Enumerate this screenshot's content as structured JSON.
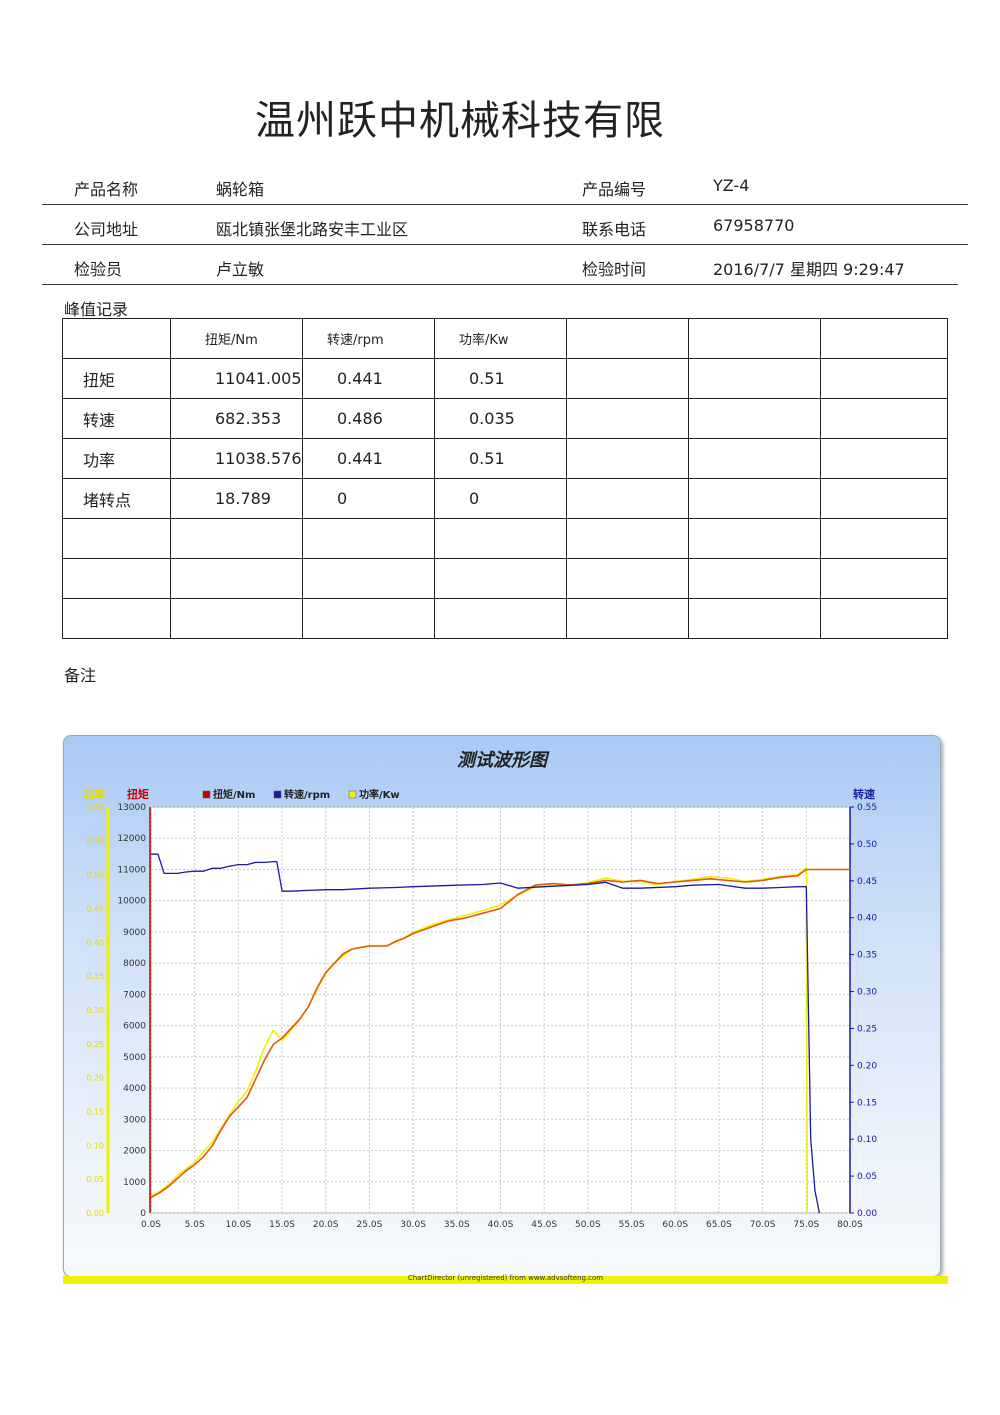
{
  "document": {
    "title": "温州跃中机械科技有限",
    "info": [
      {
        "k1": "产品名称",
        "v1": "蜗轮箱",
        "k2": "产品编号",
        "v2": "YZ-4"
      },
      {
        "k1": "公司地址",
        "v1": "瓯北镇张堡北路安丰工业区",
        "k2": "联系电话",
        "v2": "67958770"
      },
      {
        "k1": "检验员",
        "v1": "卢立敏",
        "k2": "检验时间",
        "v2": "2016/7/7 星期四 9:29:47"
      }
    ],
    "peak_label": "峰值记录",
    "peak_table": {
      "headers": [
        "",
        "扭矩/Nm",
        "转速/rpm",
        "功率/Kw",
        "",
        "",
        ""
      ],
      "rows": [
        [
          "扭矩",
          "11041.005",
          "0.441",
          "0.51",
          "",
          "",
          ""
        ],
        [
          "转速",
          "682.353",
          "0.486",
          "0.035",
          "",
          "",
          ""
        ],
        [
          "功率",
          "11038.576",
          "0.441",
          "0.51",
          "",
          "",
          ""
        ],
        [
          "堵转点",
          "18.789",
          "0",
          "0",
          "",
          "",
          ""
        ],
        [
          "",
          "",
          "",
          "",
          "",
          "",
          ""
        ],
        [
          "",
          "",
          "",
          "",
          "",
          "",
          ""
        ],
        [
          "",
          "",
          "",
          "",
          "",
          "",
          ""
        ]
      ]
    },
    "remark_label": "备注",
    "footer": "ChartDirector (unregistered) from www.advsofteng.com"
  },
  "chart_data": {
    "type": "line",
    "title": "测试波形图",
    "left_axis_power_label": "功率",
    "left_axis_torque_label": "扭矩",
    "right_axis_label": "转速",
    "legend": [
      "扭矩/Nm",
      "转速/rpm",
      "功率/Kw"
    ],
    "colors": {
      "torque": "#cc0000",
      "speed": "#1a1aa6",
      "power": "#f0f000",
      "torque_curve": "#e05a10"
    },
    "x_ticks": [
      "0.0S",
      "5.0S",
      "10.0S",
      "15.0S",
      "20.0S",
      "25.0S",
      "30.0S",
      "35.0S",
      "40.0S",
      "45.0S",
      "50.0S",
      "55.0S",
      "60.0S",
      "65.0S",
      "70.0S",
      "75.0S",
      "80.0S"
    ],
    "xlim": [
      0,
      80
    ],
    "torque_ticks": [
      "0",
      "1000",
      "2000",
      "3000",
      "4000",
      "5000",
      "6000",
      "7000",
      "8000",
      "9000",
      "10000",
      "11000",
      "12000",
      "13000"
    ],
    "torque_lim": [
      0,
      13000
    ],
    "power_ticks": [
      "0.00",
      "0.05",
      "0.10",
      "0.15",
      "0.20",
      "0.25",
      "0.30",
      "0.35",
      "0.40",
      "0.45",
      "0.50",
      "0.55",
      "0.60"
    ],
    "power_lim": [
      0,
      0.6
    ],
    "speed_ticks": [
      "0.00",
      "0.05",
      "0.10",
      "0.15",
      "0.20",
      "0.25",
      "0.30",
      "0.35",
      "0.40",
      "0.45",
      "0.50",
      "0.55"
    ],
    "speed_lim": [
      0,
      0.55
    ],
    "grid": true,
    "series": [
      {
        "name": "扭矩/Nm",
        "axis": "torque",
        "x": [
          0,
          1,
          2,
          3,
          4,
          5,
          6,
          7,
          8,
          9,
          10,
          11,
          12,
          13,
          14,
          15,
          16,
          17,
          18,
          19,
          20,
          21,
          22,
          23,
          24,
          25,
          26,
          27,
          28,
          29,
          30,
          32,
          34,
          36,
          38,
          40,
          42,
          44,
          46,
          48,
          50,
          52,
          54,
          56,
          58,
          60,
          62,
          64,
          66,
          68,
          70,
          72,
          74,
          75,
          76,
          80
        ],
        "y": [
          500,
          650,
          850,
          1100,
          1350,
          1550,
          1800,
          2150,
          2650,
          3100,
          3400,
          3700,
          4300,
          4900,
          5400,
          5600,
          5900,
          6200,
          6600,
          7200,
          7700,
          8000,
          8300,
          8450,
          8500,
          8550,
          8550,
          8550,
          8700,
          8800,
          8950,
          9150,
          9350,
          9450,
          9600,
          9750,
          10200,
          10500,
          10550,
          10500,
          10550,
          10650,
          10600,
          10650,
          10550,
          10600,
          10650,
          10700,
          10650,
          10600,
          10650,
          10750,
          10800,
          11000,
          11000,
          11000
        ]
      },
      {
        "name": "功率/Kw",
        "axis": "power",
        "x": [
          0,
          1,
          2,
          3,
          4,
          5,
          6,
          7,
          8,
          9,
          10,
          11,
          12,
          13,
          14,
          15,
          16,
          17,
          18,
          19,
          20,
          21,
          22,
          23,
          24,
          25,
          26,
          27,
          28,
          29,
          30,
          32,
          34,
          36,
          38,
          40,
          42,
          44,
          46,
          48,
          50,
          52,
          54,
          56,
          58,
          60,
          62,
          64,
          66,
          68,
          70,
          72,
          74,
          75,
          75.1
        ],
        "y": [
          0.025,
          0.032,
          0.042,
          0.055,
          0.065,
          0.075,
          0.09,
          0.105,
          0.125,
          0.145,
          0.165,
          0.18,
          0.21,
          0.245,
          0.27,
          0.255,
          0.27,
          0.285,
          0.305,
          0.33,
          0.355,
          0.37,
          0.38,
          0.39,
          0.393,
          0.395,
          0.395,
          0.395,
          0.4,
          0.407,
          0.415,
          0.425,
          0.433,
          0.44,
          0.447,
          0.455,
          0.47,
          0.482,
          0.485,
          0.485,
          0.488,
          0.495,
          0.49,
          0.49,
          0.485,
          0.49,
          0.493,
          0.497,
          0.495,
          0.49,
          0.493,
          0.497,
          0.5,
          0.51,
          0.0
        ]
      },
      {
        "name": "转速/rpm",
        "axis": "speed",
        "x": [
          0,
          0.8,
          1.5,
          3,
          4,
          5,
          6,
          7,
          8,
          9,
          10,
          11,
          12,
          13,
          14,
          14.4,
          15,
          16,
          18,
          20,
          22,
          25,
          28,
          30,
          35,
          38,
          40,
          42,
          45,
          50,
          52,
          54,
          56,
          60,
          62,
          65,
          68,
          70,
          72,
          74,
          75,
          75.5,
          76,
          76.5
        ],
        "y": [
          0.486,
          0.486,
          0.46,
          0.46,
          0.462,
          0.463,
          0.463,
          0.467,
          0.467,
          0.47,
          0.472,
          0.472,
          0.475,
          0.475,
          0.476,
          0.476,
          0.436,
          0.436,
          0.437,
          0.438,
          0.438,
          0.44,
          0.441,
          0.442,
          0.444,
          0.445,
          0.447,
          0.44,
          0.442,
          0.445,
          0.448,
          0.44,
          0.44,
          0.442,
          0.444,
          0.445,
          0.44,
          0.44,
          0.441,
          0.442,
          0.442,
          0.1,
          0.03,
          0.0
        ]
      }
    ]
  }
}
